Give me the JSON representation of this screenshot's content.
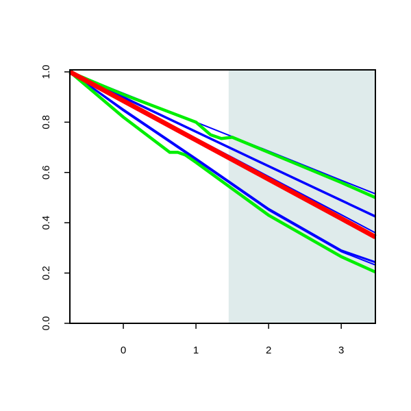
{
  "chart_data": {
    "type": "line",
    "xlim": [
      -0.736,
      3.47
    ],
    "ylim": [
      0,
      1.008
    ],
    "xticks": [
      0,
      1,
      2,
      3
    ],
    "yticks": [
      {
        "value": 0,
        "label": "0.0"
      },
      {
        "value": 0.2,
        "label": "0.2"
      },
      {
        "value": 0.4,
        "label": "0.4"
      },
      {
        "value": 0.6,
        "label": "0.6"
      },
      {
        "value": 0.8,
        "label": "0.8"
      },
      {
        "value": 1,
        "label": "1.0"
      }
    ],
    "shaded_region": {
      "x": [
        1.45,
        3.47
      ],
      "color": "#dfebeb"
    },
    "series": [
      {
        "color": "#0000ff",
        "lwd": 2,
        "x": [
          -0.736,
          0,
          1,
          2,
          3,
          3.47
        ],
        "values": [
          1,
          0.915,
          0.8,
          0.685,
          0.569,
          0.515
        ]
      },
      {
        "color": "#0000ff",
        "lwd": 3.5,
        "x": [
          -0.736,
          0,
          1,
          2,
          3,
          3.47
        ],
        "values": [
          1,
          0.899,
          0.762,
          0.625,
          0.489,
          0.425
        ]
      },
      {
        "color": "#0000ff",
        "lwd": 2,
        "x": [
          -0.736,
          0,
          1,
          2,
          3,
          3.47
        ],
        "values": [
          1,
          0.888,
          0.736,
          0.584,
          0.432,
          0.36
        ]
      },
      {
        "color": "#0000ff",
        "lwd": 3,
        "x": [
          -0.736,
          0,
          1,
          2,
          3,
          3.47
        ],
        "values": [
          1,
          0.85,
          0.655,
          0.455,
          0.29,
          0.243
        ]
      },
      {
        "color": "#0000ff",
        "lwd": 2,
        "x": [
          -0.736,
          0,
          1,
          2,
          3,
          3.47
        ],
        "values": [
          1,
          0.845,
          0.65,
          0.45,
          0.285,
          0.232
        ]
      },
      {
        "color": "#00ee00",
        "lwd": 4.5,
        "x": [
          -0.736,
          0,
          1,
          1.2,
          1.35,
          1.5,
          2,
          3,
          3.47
        ],
        "values": [
          1,
          0.91,
          0.8,
          0.75,
          0.735,
          0.74,
          0.68,
          0.56,
          0.5
        ]
      },
      {
        "color": "#00ee00",
        "lwd": 4.5,
        "x": [
          -0.736,
          0,
          0.64,
          0.75,
          0.85,
          1,
          2,
          3,
          3.47
        ],
        "values": [
          1,
          0.82,
          0.68,
          0.68,
          0.67,
          0.64,
          0.43,
          0.265,
          0.204
        ]
      },
      {
        "color": "#ff0000",
        "lwd": 7,
        "x": [
          -0.736,
          0,
          1,
          2,
          3,
          3.47
        ],
        "values": [
          1,
          0.885,
          0.729,
          0.573,
          0.417,
          0.343
        ]
      }
    ]
  }
}
